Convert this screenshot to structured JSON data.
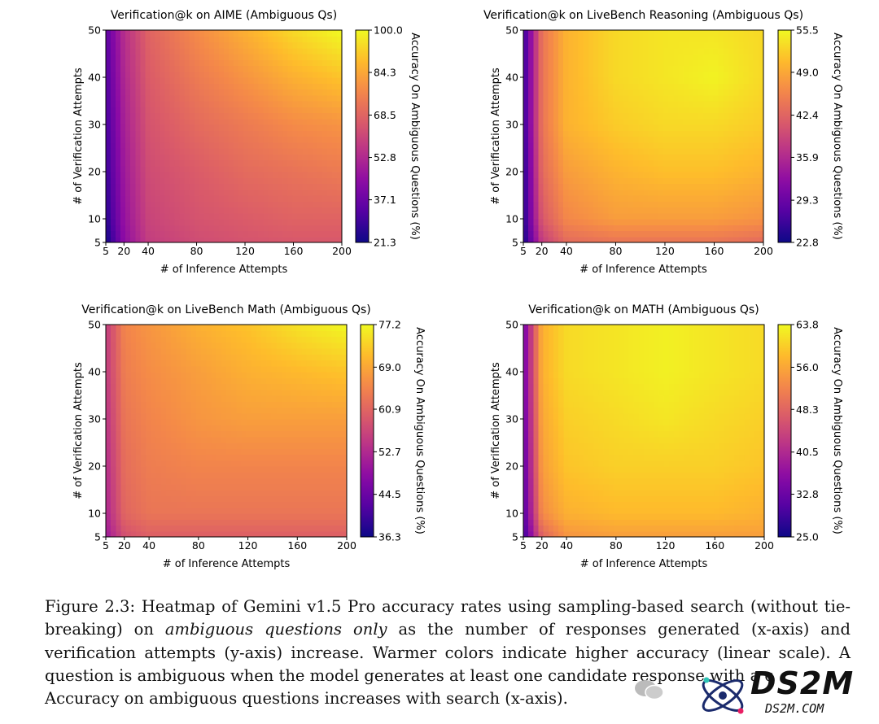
{
  "colors": {
    "colormap": "plasma"
  },
  "chart_data": [
    {
      "type": "heatmap",
      "title": "Verification@k on AIME (Ambiguous Qs)",
      "xlabel": "# of Inference Attempts",
      "ylabel": "# of Verification Attempts",
      "colorbar_label": "Accuracy On Ambiguous Questions (%)",
      "x_ticks": [
        "5",
        "20",
        "40",
        "80",
        "120",
        "160",
        "200"
      ],
      "y_ticks": [
        "5",
        "10",
        "20",
        "30",
        "40",
        "50"
      ],
      "xlim": [
        5,
        200
      ],
      "ylim": [
        5,
        50
      ],
      "colorbar_ticks": [
        "21.3",
        "37.1",
        "52.8",
        "68.5",
        "84.3",
        "100.0"
      ],
      "vmin": 21.3,
      "vmax": 100.0,
      "x": [
        5,
        20,
        40,
        80,
        120,
        160,
        200
      ],
      "y": [
        5,
        10,
        20,
        30,
        40,
        50
      ],
      "z": [
        [
          21.3,
          44,
          58,
          62,
          64,
          65,
          65
        ],
        [
          25,
          46,
          60,
          64,
          66,
          68,
          68
        ],
        [
          28,
          48,
          62,
          66,
          70,
          72,
          74
        ],
        [
          30,
          50,
          64,
          70,
          74,
          78,
          80
        ],
        [
          32,
          52,
          66,
          74,
          80,
          86,
          90
        ],
        [
          34,
          54,
          68,
          78,
          86,
          94,
          100
        ]
      ]
    },
    {
      "type": "heatmap",
      "title": "Verification@k on LiveBench Reasoning (Ambiguous Qs)",
      "xlabel": "# of Inference Attempts",
      "ylabel": "# of Verification Attempts",
      "colorbar_label": "Accuracy On Ambiguous Questions (%)",
      "x_ticks": [
        "5",
        "20",
        "40",
        "80",
        "120",
        "160",
        "200"
      ],
      "y_ticks": [
        "5",
        "10",
        "20",
        "30",
        "40",
        "50"
      ],
      "xlim": [
        5,
        200
      ],
      "ylim": [
        5,
        50
      ],
      "colorbar_ticks": [
        "22.8",
        "29.3",
        "35.9",
        "42.4",
        "49.0",
        "55.5"
      ],
      "vmin": 22.8,
      "vmax": 55.5,
      "x": [
        5,
        20,
        40,
        80,
        120,
        160,
        200
      ],
      "y": [
        5,
        10,
        20,
        30,
        40,
        50
      ],
      "z": [
        [
          23,
          38,
          43,
          44,
          44,
          44,
          43
        ],
        [
          24,
          41,
          46,
          48,
          48,
          48,
          47
        ],
        [
          24,
          43,
          48,
          50,
          51,
          51,
          50
        ],
        [
          25,
          44,
          50,
          52,
          53,
          53,
          52
        ],
        [
          25,
          44,
          50,
          53,
          54,
          55,
          53
        ],
        [
          25,
          44,
          50,
          53,
          54,
          54,
          53
        ]
      ]
    },
    {
      "type": "heatmap",
      "title": "Verification@k on LiveBench Math (Ambiguous Qs)",
      "xlabel": "# of Inference Attempts",
      "ylabel": "# of Verification Attempts",
      "colorbar_label": "Accuracy On Ambiguous Questions (%)",
      "x_ticks": [
        "5",
        "20",
        "40",
        "80",
        "120",
        "160",
        "200"
      ],
      "y_ticks": [
        "5",
        "10",
        "20",
        "30",
        "40",
        "50"
      ],
      "xlim": [
        5,
        200
      ],
      "ylim": [
        5,
        50
      ],
      "colorbar_ticks": [
        "36.3",
        "44.5",
        "52.7",
        "60.9",
        "69.0",
        "77.2"
      ],
      "vmin": 36.3,
      "vmax": 77.2,
      "x": [
        5,
        20,
        40,
        80,
        120,
        160,
        200
      ],
      "y": [
        5,
        10,
        20,
        30,
        40,
        50
      ],
      "z": [
        [
          50,
          58,
          60,
          60,
          60,
          60,
          60
        ],
        [
          52,
          61,
          63,
          63,
          63,
          63,
          63
        ],
        [
          53,
          62,
          64,
          65,
          65,
          65,
          65
        ],
        [
          54,
          63,
          65,
          67,
          68,
          68,
          68
        ],
        [
          55,
          64,
          66,
          68,
          70,
          71,
          72
        ],
        [
          55,
          65,
          67,
          70,
          72,
          75,
          77
        ]
      ]
    },
    {
      "type": "heatmap",
      "title": "Verification@k on MATH (Ambiguous Qs)",
      "xlabel": "# of Inference Attempts",
      "ylabel": "# of Verification Attempts",
      "colorbar_label": "Accuracy On Ambiguous Questions (%)",
      "x_ticks": [
        "5",
        "20",
        "40",
        "80",
        "120",
        "160",
        "200"
      ],
      "y_ticks": [
        "5",
        "10",
        "20",
        "30",
        "40",
        "50"
      ],
      "xlim": [
        5,
        200
      ],
      "ylim": [
        5,
        50
      ],
      "colorbar_ticks": [
        "25.0",
        "32.8",
        "40.5",
        "48.3",
        "56.0",
        "63.8"
      ],
      "vmin": 25.0,
      "vmax": 63.8,
      "x": [
        5,
        20,
        40,
        80,
        120,
        160,
        200
      ],
      "y": [
        5,
        10,
        20,
        30,
        40,
        50
      ],
      "z": [
        [
          28,
          48,
          54,
          55,
          55,
          55,
          55
        ],
        [
          30,
          53,
          57,
          58,
          58,
          58,
          57
        ],
        [
          31,
          55,
          59,
          60,
          60,
          60,
          59
        ],
        [
          32,
          56,
          60,
          61,
          62,
          61,
          60
        ],
        [
          33,
          57,
          61,
          62,
          63,
          62,
          61
        ],
        [
          33,
          57,
          61,
          62,
          63,
          62,
          61
        ]
      ]
    }
  ],
  "caption": {
    "part1": "Figure 2.3: Heatmap of Gemini v1.5 Pro accuracy rates using sampling-based search (without tie-breaking) on ",
    "emph": "ambiguous questions only",
    "part2": " as the number of responses generated (x-axis) and verification attempts (y-axis) increase. Warmer colors indicate higher accuracy (linear scale). A question is ambiguous when the model generates at least one candidate response with a c",
    "part3": "Accuracy on ambiguous questions increases with search (x-axis)."
  },
  "watermark": {
    "logo_text": "DS2M",
    "sub_text": "DS2M.COM"
  }
}
